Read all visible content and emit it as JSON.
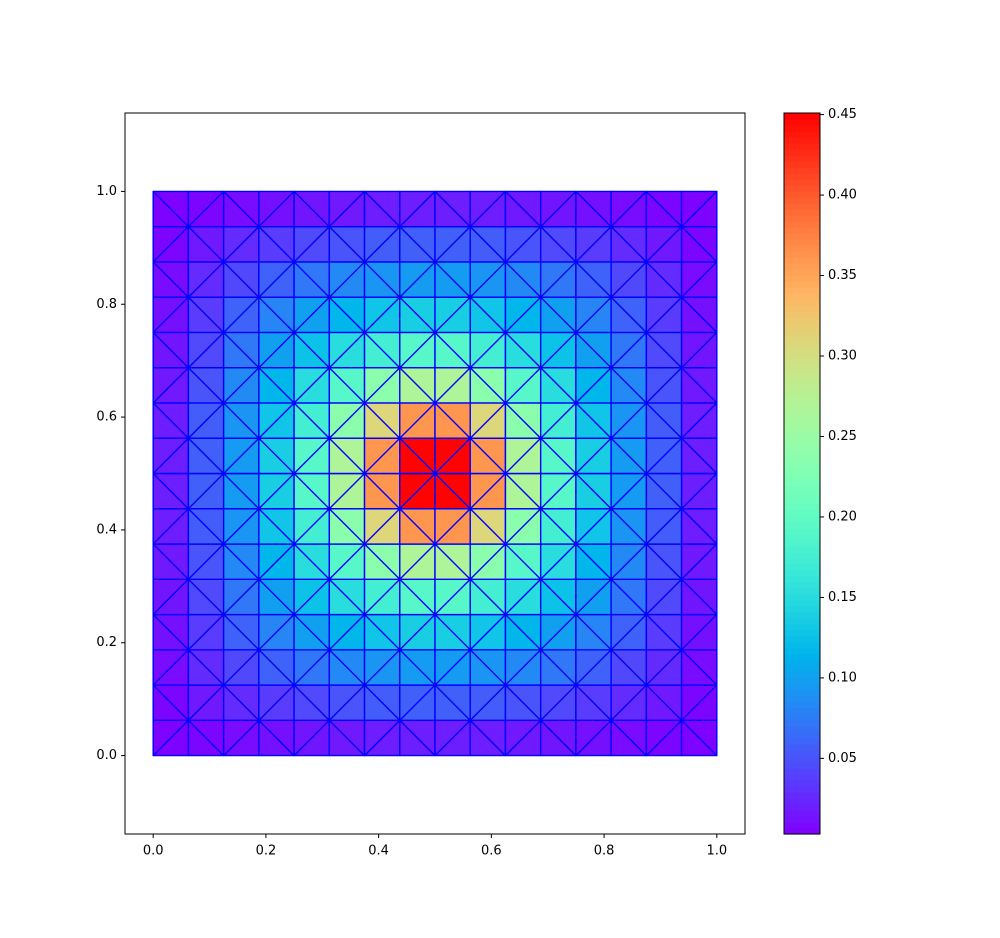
{
  "chart_data": {
    "type": "tripcolor",
    "colormap": "rainbow",
    "edge_color": "#0000ff",
    "x_edges": [
      0,
      0.0625,
      0.125,
      0.1875,
      0.25,
      0.3125,
      0.375,
      0.4375,
      0.5,
      0.5625,
      0.625,
      0.6875,
      0.75,
      0.8125,
      0.875,
      0.9375,
      1
    ],
    "y_edges": [
      0,
      0.0625,
      0.125,
      0.1875,
      0.25,
      0.3125,
      0.375,
      0.4375,
      0.5,
      0.5625,
      0.625,
      0.6875,
      0.75,
      0.8125,
      0.875,
      0.9375,
      1
    ],
    "values": [
      [
        0.004,
        0.006,
        0.009,
        0.012,
        0.015,
        0.017,
        0.019,
        0.02,
        0.02,
        0.019,
        0.017,
        0.015,
        0.012,
        0.009,
        0.006,
        0.004
      ],
      [
        0.006,
        0.017,
        0.027,
        0.037,
        0.045,
        0.051,
        0.056,
        0.058,
        0.058,
        0.056,
        0.051,
        0.045,
        0.037,
        0.027,
        0.017,
        0.006
      ],
      [
        0.009,
        0.027,
        0.044,
        0.06,
        0.073,
        0.084,
        0.092,
        0.096,
        0.096,
        0.092,
        0.084,
        0.073,
        0.06,
        0.044,
        0.027,
        0.009
      ],
      [
        0.012,
        0.037,
        0.06,
        0.081,
        0.1,
        0.116,
        0.129,
        0.137,
        0.137,
        0.129,
        0.116,
        0.1,
        0.081,
        0.06,
        0.037,
        0.012
      ],
      [
        0.015,
        0.045,
        0.073,
        0.1,
        0.126,
        0.151,
        0.175,
        0.191,
        0.191,
        0.175,
        0.151,
        0.126,
        0.1,
        0.073,
        0.045,
        0.015
      ],
      [
        0.017,
        0.051,
        0.084,
        0.116,
        0.151,
        0.192,
        0.237,
        0.268,
        0.268,
        0.237,
        0.192,
        0.151,
        0.116,
        0.084,
        0.051,
        0.017
      ],
      [
        0.019,
        0.056,
        0.092,
        0.129,
        0.175,
        0.237,
        0.309,
        0.361,
        0.361,
        0.309,
        0.237,
        0.175,
        0.129,
        0.092,
        0.056,
        0.019
      ],
      [
        0.02,
        0.058,
        0.096,
        0.137,
        0.191,
        0.268,
        0.361,
        0.45,
        0.45,
        0.361,
        0.268,
        0.191,
        0.137,
        0.096,
        0.058,
        0.02
      ],
      [
        0.02,
        0.058,
        0.096,
        0.137,
        0.191,
        0.268,
        0.361,
        0.45,
        0.45,
        0.361,
        0.268,
        0.191,
        0.137,
        0.096,
        0.058,
        0.02
      ],
      [
        0.019,
        0.056,
        0.092,
        0.129,
        0.175,
        0.237,
        0.309,
        0.361,
        0.361,
        0.309,
        0.237,
        0.175,
        0.129,
        0.092,
        0.056,
        0.019
      ],
      [
        0.017,
        0.051,
        0.084,
        0.116,
        0.151,
        0.192,
        0.237,
        0.268,
        0.268,
        0.237,
        0.192,
        0.151,
        0.116,
        0.084,
        0.051,
        0.017
      ],
      [
        0.015,
        0.045,
        0.073,
        0.1,
        0.126,
        0.151,
        0.175,
        0.191,
        0.191,
        0.175,
        0.151,
        0.126,
        0.1,
        0.073,
        0.045,
        0.015
      ],
      [
        0.012,
        0.037,
        0.06,
        0.081,
        0.1,
        0.116,
        0.129,
        0.137,
        0.137,
        0.129,
        0.116,
        0.1,
        0.081,
        0.06,
        0.037,
        0.012
      ],
      [
        0.009,
        0.027,
        0.044,
        0.06,
        0.073,
        0.084,
        0.092,
        0.096,
        0.096,
        0.092,
        0.084,
        0.073,
        0.06,
        0.044,
        0.027,
        0.009
      ],
      [
        0.006,
        0.017,
        0.027,
        0.037,
        0.045,
        0.051,
        0.056,
        0.058,
        0.058,
        0.056,
        0.051,
        0.045,
        0.037,
        0.027,
        0.017,
        0.006
      ],
      [
        0.004,
        0.006,
        0.009,
        0.012,
        0.015,
        0.017,
        0.019,
        0.02,
        0.02,
        0.019,
        0.017,
        0.015,
        0.012,
        0.009,
        0.006,
        0.004
      ]
    ],
    "xlim": [
      -0.05,
      1.05
    ],
    "ylim": [
      -0.139,
      1.139
    ],
    "xticks": [
      {
        "value": 0,
        "label": "0.0"
      },
      {
        "value": 0.2,
        "label": "0.2"
      },
      {
        "value": 0.4,
        "label": "0.4"
      },
      {
        "value": 0.6,
        "label": "0.6"
      },
      {
        "value": 0.8,
        "label": "0.8"
      },
      {
        "value": 1,
        "label": "1.0"
      }
    ],
    "yticks": [
      {
        "value": 0,
        "label": "0.0"
      },
      {
        "value": 0.2,
        "label": "0.2"
      },
      {
        "value": 0.4,
        "label": "0.4"
      },
      {
        "value": 0.6,
        "label": "0.6"
      },
      {
        "value": 0.8,
        "label": "0.8"
      },
      {
        "value": 1,
        "label": "1.0"
      }
    ],
    "clim": [
      0.003,
      0.451
    ],
    "colorbar_ticks": [
      {
        "value": 0.05,
        "label": "0.05"
      },
      {
        "value": 0.1,
        "label": "0.10"
      },
      {
        "value": 0.15,
        "label": "0.15"
      },
      {
        "value": 0.2,
        "label": "0.20"
      },
      {
        "value": 0.25,
        "label": "0.25"
      },
      {
        "value": 0.3,
        "label": "0.30"
      },
      {
        "value": 0.35,
        "label": "0.35"
      },
      {
        "value": 0.4,
        "label": "0.40"
      },
      {
        "value": 0.45,
        "label": "0.45"
      }
    ]
  }
}
